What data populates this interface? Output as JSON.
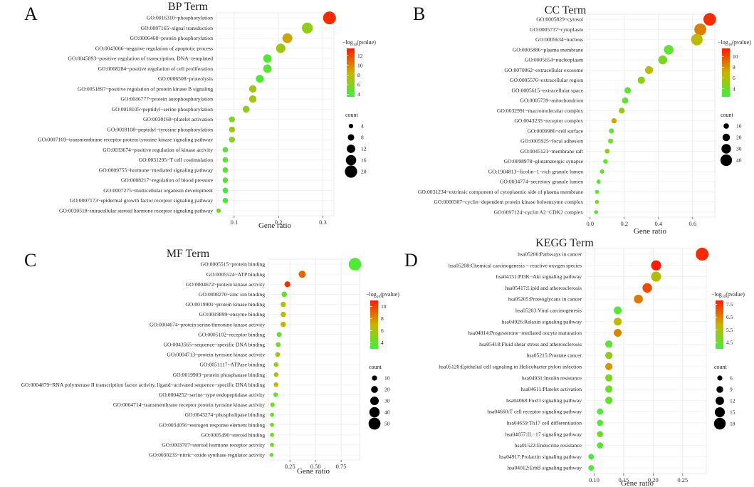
{
  "figure": {
    "color_low": "#3ef03e",
    "color_mid": "#c8b400",
    "color_high": "#ff1a00",
    "legend_color_title": "−log10(pvalue)",
    "legend_size_title": "count"
  },
  "chart_data": [
    {
      "type": "scatter",
      "letter": "A",
      "title": "BP Term",
      "xlabel": "Gene ratio",
      "xlim": [
        0.06,
        0.325
      ],
      "xticks": [
        {
          "v": 0.1,
          "label": "0.1"
        },
        {
          "v": 0.2,
          "label": "0.2"
        },
        {
          "v": 0.3,
          "label": "0.3"
        }
      ],
      "color_range": [
        3.5,
        13.5
      ],
      "color_ticks": [
        4,
        6,
        8,
        10,
        12
      ],
      "size_range": [
        3,
        21
      ],
      "size_ticks": [
        4,
        8,
        12,
        16,
        20
      ],
      "terms": [
        {
          "label": "GO:0016310~phosphorylation",
          "x": 0.315,
          "p": 13,
          "count": 21
        },
        {
          "label": "GO:0007165~signal transduction",
          "x": 0.265,
          "p": 6.5,
          "count": 17
        },
        {
          "label": "GO:0006468~protein phosphorylation",
          "x": 0.22,
          "p": 9,
          "count": 15
        },
        {
          "label": "GO:0043066~negative regulation of apoptotic process",
          "x": 0.205,
          "p": 7,
          "count": 14
        },
        {
          "label": "GO:0045893~positive regulation of transcription, DNA−templated",
          "x": 0.175,
          "p": 4.2,
          "count": 12
        },
        {
          "label": "GO:0008284~positive regulation of cell proliferation",
          "x": 0.175,
          "p": 4.4,
          "count": 12
        },
        {
          "label": "GO:0006508~proteolysis",
          "x": 0.158,
          "p": 4,
          "count": 11
        },
        {
          "label": "GO:0051897~positive regulation of protein kinase B signaling",
          "x": 0.142,
          "p": 7,
          "count": 10
        },
        {
          "label": "GO:0046777~protein autophosphorylation",
          "x": 0.142,
          "p": 7.2,
          "count": 10
        },
        {
          "label": "GO:0018105~peptidyl−serine phosphorylation",
          "x": 0.127,
          "p": 6.5,
          "count": 9
        },
        {
          "label": "GO:0030168~platelet activation",
          "x": 0.095,
          "p": 6,
          "count": 7
        },
        {
          "label": "GO:0018108~peptidyl−tyrosine phosphorylation",
          "x": 0.095,
          "p": 6.8,
          "count": 7
        },
        {
          "label": "GO:0007169~transmembrane receptor protein tyrosine kinase signaling pathway",
          "x": 0.095,
          "p": 6,
          "count": 7
        },
        {
          "label": "GO:0033674~positive regulation of kinase activity",
          "x": 0.08,
          "p": 4.2,
          "count": 6
        },
        {
          "label": "GO:0031295~T cell costimulation",
          "x": 0.08,
          "p": 4.4,
          "count": 6
        },
        {
          "label": "GO:0009755~hormone−mediated signaling pathway",
          "x": 0.08,
          "p": 4.3,
          "count": 6
        },
        {
          "label": "GO:0008217~regulation of blood pressure",
          "x": 0.08,
          "p": 4.6,
          "count": 6
        },
        {
          "label": "GO:0007275~multicellular organism development",
          "x": 0.08,
          "p": 3.8,
          "count": 6
        },
        {
          "label": "GO:0007173~epidermal growth factor receptor signaling pathway",
          "x": 0.08,
          "p": 4,
          "count": 6
        },
        {
          "label": "GO:0030518~intracellular steroid hormone receptor signaling pathway",
          "x": 0.065,
          "p": 5.5,
          "count": 4
        }
      ]
    },
    {
      "type": "scatter",
      "letter": "B",
      "title": "CC Term",
      "xlabel": "Gene ratio",
      "xlim": [
        -0.02,
        0.73
      ],
      "xticks": [
        {
          "v": 0,
          "label": "0.0"
        },
        {
          "v": 0.2,
          "label": "0.2"
        },
        {
          "v": 0.4,
          "label": "0.4"
        },
        {
          "v": 0.6,
          "label": "0.6"
        }
      ],
      "color_range": [
        2.5,
        11.5
      ],
      "color_ticks": [
        4,
        6,
        8,
        10
      ],
      "size_range": [
        3,
        46
      ],
      "size_ticks": [
        10,
        20,
        30,
        40
      ],
      "terms": [
        {
          "label": "GO:0005829~cytosol",
          "x": 0.7,
          "p": 11,
          "count": 45
        },
        {
          "label": "GO:0005737~cytoplasm",
          "x": 0.645,
          "p": 8.5,
          "count": 42
        },
        {
          "label": "GO:0005634~nucleus",
          "x": 0.625,
          "p": 6.5,
          "count": 40
        },
        {
          "label": "GO:0005886~plasma membrane",
          "x": 0.46,
          "p": 3.5,
          "count": 30
        },
        {
          "label": "GO:0005654~nucleoplasm",
          "x": 0.425,
          "p": 4.5,
          "count": 27
        },
        {
          "label": "GO:0070062~extracellular exosome",
          "x": 0.345,
          "p": 6.5,
          "count": 22
        },
        {
          "label": "GO:0005576~extracellular region",
          "x": 0.3,
          "p": 5,
          "count": 19
        },
        {
          "label": "GO:0005615~extracellular space",
          "x": 0.22,
          "p": 3.5,
          "count": 15
        },
        {
          "label": "GO:0005739~mitochondrion",
          "x": 0.205,
          "p": 3.5,
          "count": 14
        },
        {
          "label": "GO:0032991~macromolecular complex",
          "x": 0.185,
          "p": 5.5,
          "count": 12
        },
        {
          "label": "GO:0043235~receptor complex",
          "x": 0.14,
          "p": 7.5,
          "count": 9
        },
        {
          "label": "GO:0009986~cell surface",
          "x": 0.125,
          "p": 3.5,
          "count": 8
        },
        {
          "label": "GO:0005925~focal adhesion",
          "x": 0.12,
          "p": 4,
          "count": 8
        },
        {
          "label": "GO:0045121~membrane raft",
          "x": 0.1,
          "p": 5,
          "count": 7
        },
        {
          "label": "GO:0098978~glutamatergic synapse",
          "x": 0.09,
          "p": 3.5,
          "count": 6
        },
        {
          "label": "GO:1904813~ficolin−1−rich granule lumen",
          "x": 0.07,
          "p": 3.5,
          "count": 5
        },
        {
          "label": "GO:0034774~secretory granule lumen",
          "x": 0.05,
          "p": 3.5,
          "count": 4
        },
        {
          "label": "GO:0031234~extrinsic component of cytoplasmic side of plasma membrane",
          "x": 0.04,
          "p": 3.5,
          "count": 3
        },
        {
          "label": "GO:0000307~cyclin−dependent protein kinase holoenzyme complex",
          "x": 0.04,
          "p": 4.5,
          "count": 3
        },
        {
          "label": "GO:0097124~cyclin A2−CDK2 complex",
          "x": 0.035,
          "p": 3.5,
          "count": 3
        }
      ]
    },
    {
      "type": "scatter",
      "letter": "C",
      "title": "MF Term",
      "xlabel": "Gene ratio",
      "xlim": [
        0.04,
        0.93
      ],
      "xticks": [
        {
          "v": 0.25,
          "label": "0.25"
        },
        {
          "v": 0.5,
          "label": "0.50"
        },
        {
          "v": 0.75,
          "label": "0.75"
        }
      ],
      "color_range": [
        3,
        11
      ],
      "color_ticks": [
        4,
        6,
        8,
        10
      ],
      "size_range": [
        3,
        55
      ],
      "size_ticks": [
        10,
        20,
        30,
        40,
        50
      ],
      "terms": [
        {
          "label": "GO:0005515~protein binding",
          "x": 0.885,
          "p": 3.5,
          "count": 53
        },
        {
          "label": "GO:0005524~ATP binding",
          "x": 0.37,
          "p": 9,
          "count": 22
        },
        {
          "label": "GO:0004672~protein kinase activity",
          "x": 0.225,
          "p": 10.5,
          "count": 14
        },
        {
          "label": "GO:0008270~zinc ion binding",
          "x": 0.195,
          "p": 4,
          "count": 12
        },
        {
          "label": "GO:0019901~protein kinase binding",
          "x": 0.185,
          "p": 6,
          "count": 11
        },
        {
          "label": "GO:0019899~enzyme binding",
          "x": 0.185,
          "p": 6.5,
          "count": 11
        },
        {
          "label": "GO:0004674~protein serine/threonine kinase activity",
          "x": 0.185,
          "p": 6.8,
          "count": 11
        },
        {
          "label": "GO:0005102~receptor binding",
          "x": 0.145,
          "p": 4,
          "count": 9
        },
        {
          "label": "GO:0043565~sequence−specific DNA binding",
          "x": 0.135,
          "p": 4.5,
          "count": 8
        },
        {
          "label": "GO:0004713~protein tyrosine kinase activity",
          "x": 0.13,
          "p": 6,
          "count": 8
        },
        {
          "label": "GO:0051117~ATPase binding",
          "x": 0.115,
          "p": 5.5,
          "count": 7
        },
        {
          "label": "GO:0019903~protein phosphatase binding",
          "x": 0.115,
          "p": 6,
          "count": 7
        },
        {
          "label": "GO:0004879~RNA polymerase II transcription factor activity, ligand−activated sequence−specific DNA binding",
          "x": 0.115,
          "p": 7,
          "count": 7
        },
        {
          "label": "GO:0004252~serine−type endopeptidase activity",
          "x": 0.11,
          "p": 4,
          "count": 6
        },
        {
          "label": "GO:0004714~transmembrane receptor protein tyrosine kinase activity",
          "x": 0.08,
          "p": 4.5,
          "count": 5
        },
        {
          "label": "GO:0043274~phospholipase binding",
          "x": 0.075,
          "p": 4,
          "count": 4
        },
        {
          "label": "GO:0034056~estrogen response element binding",
          "x": 0.075,
          "p": 4.5,
          "count": 4
        },
        {
          "label": "GO:0005496~steroid binding",
          "x": 0.075,
          "p": 4.2,
          "count": 4
        },
        {
          "label": "GO:0003707~steroid hormone receptor activity",
          "x": 0.075,
          "p": 4.8,
          "count": 4
        },
        {
          "label": "GO:0030235~nitric−oxide synthase regulator activity",
          "x": 0.07,
          "p": 4,
          "count": 3
        }
      ]
    },
    {
      "type": "scatter",
      "letter": "D",
      "title": "KEGG Term",
      "xlabel": "Gene ratio",
      "xlim": [
        0.085,
        0.29
      ],
      "xticks": [
        {
          "v": 0.1,
          "label": "0.10"
        },
        {
          "v": 0.15,
          "label": "0.15"
        },
        {
          "v": 0.2,
          "label": "0.20"
        },
        {
          "v": 0.25,
          "label": "0.25"
        }
      ],
      "color_range": [
        4,
        7.8
      ],
      "color_ticks": [
        4.5,
        5.5,
        6.5,
        7.5
      ],
      "size_range": [
        4,
        20
      ],
      "size_ticks": [
        6,
        9,
        12,
        15,
        18
      ],
      "terms": [
        {
          "label": "hsa05200:Pathways in cancer",
          "x": 0.283,
          "p": 7.6,
          "count": 20
        },
        {
          "label": "hsa05208:Chemical carcinogenesis − reactive oxygen species",
          "x": 0.205,
          "p": 7.8,
          "count": 15
        },
        {
          "label": "hsa04151:PI3K−Akt signaling pathway",
          "x": 0.205,
          "p": 5.6,
          "count": 15
        },
        {
          "label": "hsa05417:Lipid and atherosclerosis",
          "x": 0.19,
          "p": 7.2,
          "count": 14
        },
        {
          "label": "hsa05205:Proteoglycans in cancer",
          "x": 0.175,
          "p": 6.6,
          "count": 13
        },
        {
          "label": "hsa05203:Viral carcinogenesis",
          "x": 0.14,
          "p": 4.2,
          "count": 11
        },
        {
          "label": "hsa04926:Relaxin signaling pathway",
          "x": 0.14,
          "p": 5.8,
          "count": 11
        },
        {
          "label": "hsa04914:Progesterone−mediated oocyte maturation",
          "x": 0.14,
          "p": 6.5,
          "count": 11
        },
        {
          "label": "hsa05418:Fluid shear stress and atherosclerosis",
          "x": 0.125,
          "p": 4.4,
          "count": 10
        },
        {
          "label": "hsa05215:Prostate cancer",
          "x": 0.125,
          "p": 5.2,
          "count": 10
        },
        {
          "label": "hsa05120:Epithelial cell signaling in Helicobacter pylori infection",
          "x": 0.125,
          "p": 6.2,
          "count": 10
        },
        {
          "label": "hsa04931:Insulin resistance",
          "x": 0.125,
          "p": 4.8,
          "count": 10
        },
        {
          "label": "hsa04611:Platelet activation",
          "x": 0.125,
          "p": 4.6,
          "count": 10
        },
        {
          "label": "hsa04068:FoxO signaling pathway",
          "x": 0.125,
          "p": 4.5,
          "count": 10
        },
        {
          "label": "hsa04660:T cell receptor signaling pathway",
          "x": 0.11,
          "p": 4.2,
          "count": 8
        },
        {
          "label": "hsa04659:Th17 cell differentiation",
          "x": 0.11,
          "p": 4.3,
          "count": 8
        },
        {
          "label": "hsa04657:IL−17 signaling pathway",
          "x": 0.11,
          "p": 4.6,
          "count": 8
        },
        {
          "label": "hsa01522:Endocrine resistance",
          "x": 0.11,
          "p": 4.4,
          "count": 8
        },
        {
          "label": "hsa04917:Prolactin signaling pathway",
          "x": 0.095,
          "p": 4.1,
          "count": 7
        },
        {
          "label": "hsa04012:ErbB signaling pathway",
          "x": 0.095,
          "p": 4.2,
          "count": 7
        }
      ]
    }
  ]
}
